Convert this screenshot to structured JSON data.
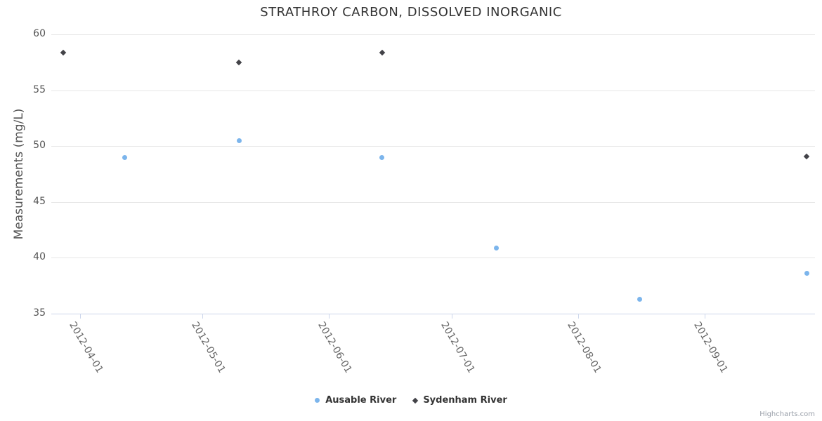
{
  "chart_data": {
    "type": "scatter",
    "title": "STRATHROY CARBON, DISSOLVED INORGANIC",
    "xlabel": "",
    "ylabel": "Measurements (mg/L)",
    "ylim": [
      35,
      60
    ],
    "y_ticks": [
      35,
      40,
      45,
      50,
      55,
      60
    ],
    "x_ticks": [
      "2012-04-01",
      "2012-05-01",
      "2012-06-01",
      "2012-07-01",
      "2012-08-01",
      "2012-09-01"
    ],
    "x_range": [
      "2012-03-25",
      "2012-09-28"
    ],
    "grid": "horizontal-only",
    "legend_position": "bottom-center",
    "series": [
      {
        "name": "Ausable River",
        "marker": "circle",
        "color": "#7cb5ec",
        "points": [
          {
            "date": "2012-04-12",
            "value": 49.0
          },
          {
            "date": "2012-05-10",
            "value": 50.5
          },
          {
            "date": "2012-06-14",
            "value": 49.0
          },
          {
            "date": "2012-07-12",
            "value": 40.9
          },
          {
            "date": "2012-08-16",
            "value": 36.3
          },
          {
            "date": "2012-09-26",
            "value": 38.6
          }
        ]
      },
      {
        "name": "Sydenham River",
        "marker": "diamond",
        "color": "#434348",
        "points": [
          {
            "date": "2012-03-28",
            "value": 58.4
          },
          {
            "date": "2012-05-10",
            "value": 57.5
          },
          {
            "date": "2012-06-14",
            "value": 58.4
          },
          {
            "date": "2012-09-26",
            "value": 49.1
          }
        ]
      }
    ]
  },
  "credits": "Highcharts.com",
  "colors": {
    "background": "#ffffff",
    "title_text": "#333333",
    "axis_label_text": "#666666",
    "y_label_text": "#555555",
    "gridline": "#e6e6e6",
    "axis_line": "#ccd6eb",
    "legend_text": "#333333",
    "credits_text": "#999fa9"
  }
}
